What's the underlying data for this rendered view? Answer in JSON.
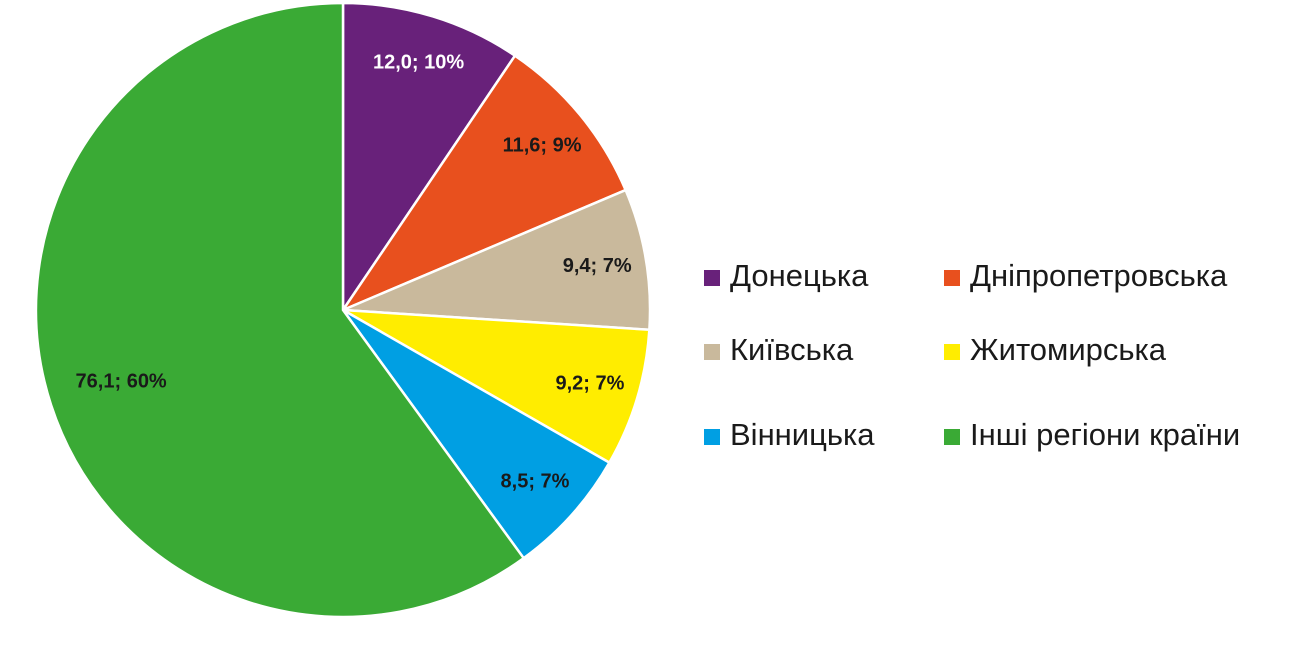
{
  "chart_data": {
    "type": "pie",
    "categories": [
      "Донецька",
      "Дніпропетровська",
      "Київська",
      "Житомирська",
      "Вінницька",
      "Інші регіони країни"
    ],
    "values": [
      12.0,
      11.6,
      9.4,
      9.2,
      8.5,
      76.1
    ],
    "value_labels": [
      "12,0; 10%",
      "11,6; 9%",
      "9,4; 7%",
      "9,2; 7%",
      "8,5; 7%",
      "76,1; 60%"
    ],
    "colors": [
      "#68217a",
      "#e8501e",
      "#c9b99c",
      "#ffed00",
      "#009fe3",
      "#3aaa35"
    ],
    "label_colors": [
      "#ffffff",
      "#1a1a1a",
      "#1a1a1a",
      "#1a1a1a",
      "#1a1a1a",
      "#1a1a1a"
    ],
    "legend": "right"
  }
}
